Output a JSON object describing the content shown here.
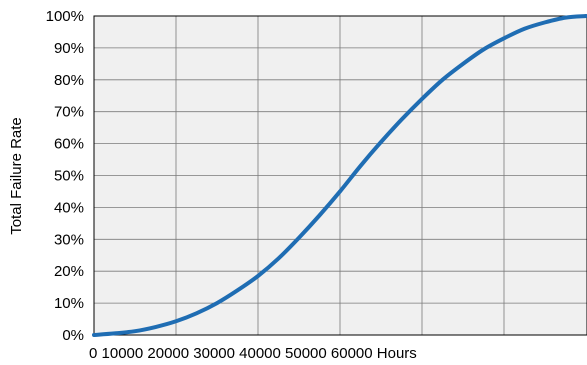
{
  "chart_data": {
    "type": "line",
    "title": "",
    "xlabel": "",
    "ylabel": "Total  Failure  Rate",
    "x_tick_text": "0 10000 20000 30000 40000 50000 60000 Hours",
    "xlim": [
      0,
      60000
    ],
    "ylim": [
      0,
      100
    ],
    "y_ticks": [
      "0%",
      "10%",
      "20%",
      "30%",
      "40%",
      "50%",
      "60%",
      "70%",
      "80%",
      "90%",
      "100%"
    ],
    "grid": true,
    "legend": "none",
    "colors": {
      "line": "#1f6db3",
      "plot_background": "#f0f0f0",
      "grid": "#7a7a7a",
      "frame": "#000000"
    },
    "series": [
      {
        "x": [
          0,
          2500,
          5000,
          7500,
          10000,
          12500,
          15000,
          17500,
          20000,
          22500,
          25000,
          27500,
          30000,
          32500,
          35000,
          37500,
          40000,
          42500,
          45000,
          47500,
          50000,
          52500,
          55000,
          57500,
          60000
        ],
        "values": [
          0,
          0.5,
          1.2,
          2.5,
          4.3,
          6.8,
          10,
          14,
          18.5,
          24,
          30.5,
          37.5,
          45,
          53,
          60.5,
          67.5,
          74,
          80,
          85,
          89.5,
          93,
          96,
          98,
          99.5,
          100
        ]
      }
    ]
  }
}
